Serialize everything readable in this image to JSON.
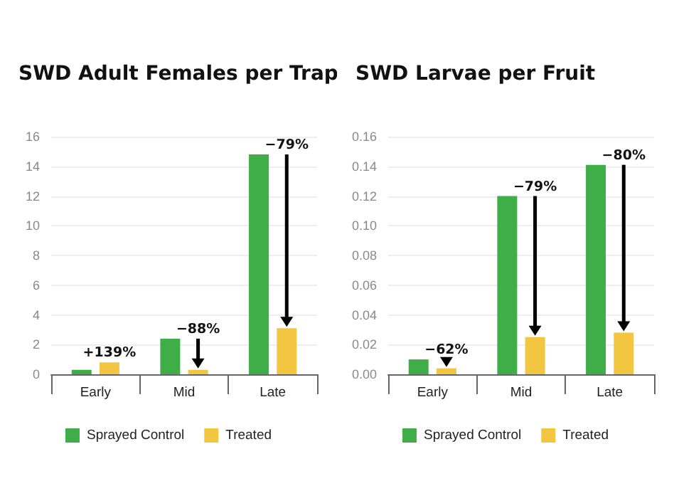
{
  "chart_data": [
    {
      "type": "bar",
      "title": "SWD Adult Females per Trap",
      "categories": [
        "Early",
        "Mid",
        "Late"
      ],
      "series": [
        {
          "name": "Sprayed Control",
          "color": "#3fae49",
          "values": [
            0.3,
            2.4,
            14.8
          ]
        },
        {
          "name": "Treated",
          "color": "#f2c641",
          "values": [
            0.8,
            0.3,
            3.1
          ]
        }
      ],
      "ylim": [
        0,
        16
      ],
      "yticks": [
        0,
        2,
        4,
        6,
        8,
        10,
        12,
        14,
        16
      ],
      "grid": "y",
      "legend": "bottom",
      "annotations": [
        {
          "text": "+139%",
          "x": "Early",
          "y": 0.8
        },
        {
          "text": "−88%",
          "x": "Mid",
          "y": 2.4
        },
        {
          "text": "−79%",
          "x": "Late",
          "y": 14.8
        }
      ]
    },
    {
      "type": "bar",
      "title": "SWD Larvae per Fruit",
      "categories": [
        "Early",
        "Mid",
        "Late"
      ],
      "series": [
        {
          "name": "Sprayed Control",
          "color": "#3fae49",
          "values": [
            0.01,
            0.12,
            0.141
          ]
        },
        {
          "name": "Treated",
          "color": "#f2c641",
          "values": [
            0.004,
            0.025,
            0.028
          ]
        }
      ],
      "ylim": [
        0,
        0.16
      ],
      "yticks": [
        {
          "value": 0,
          "label": "0.00"
        },
        {
          "value": 0.02,
          "label": "0.02"
        },
        {
          "value": 0.04,
          "label": "0.04"
        },
        {
          "value": 0.06,
          "label": "0.06"
        },
        {
          "value": 0.08,
          "label": "0.08"
        },
        {
          "value": 0.1,
          "label": "0.10"
        },
        {
          "value": 0.12,
          "label": "0.12"
        },
        {
          "value": 0.14,
          "label": "0.14"
        },
        {
          "value": 0.16,
          "label": "0.16"
        }
      ],
      "grid": "y",
      "legend": "bottom",
      "annotations": [
        {
          "text": "−62%",
          "x": "Early",
          "y": 0.01
        },
        {
          "text": "−79%",
          "x": "Mid",
          "y": 0.12
        },
        {
          "text": "−80%",
          "x": "Late",
          "y": 0.141
        }
      ]
    }
  ]
}
